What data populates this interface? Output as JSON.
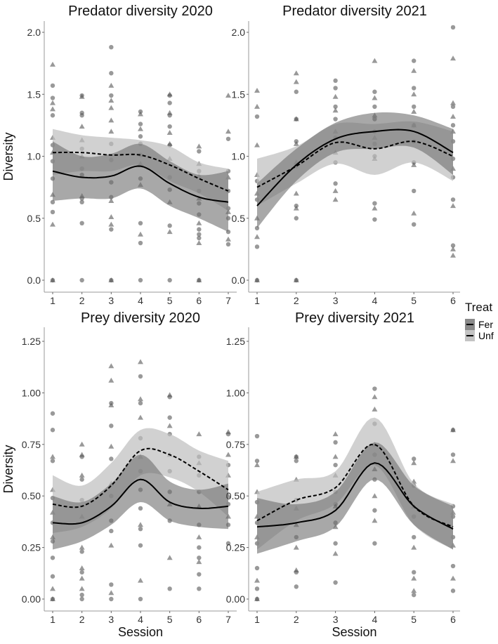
{
  "chart_data": [
    {
      "type": "scatter",
      "title": "Predator diversity 2020",
      "xlabel": "",
      "ylabel": "Diversity",
      "x": [
        1,
        2,
        3,
        4,
        5,
        6,
        7
      ],
      "xticks": [
        "1",
        "2",
        "3",
        "4",
        "5",
        "6",
        "7"
      ],
      "ylim": [
        0,
        2.0
      ],
      "yticks": [
        "0.0",
        "0.5",
        "1.0",
        "1.5",
        "2.0"
      ],
      "ytick_values": [
        0,
        0.5,
        1.0,
        1.5,
        2.0
      ],
      "smooth": {
        "Fer": {
          "fit": [
            0.88,
            0.83,
            0.84,
            0.92,
            0.78,
            0.67,
            0.63
          ],
          "lower": [
            0.64,
            0.66,
            0.66,
            0.74,
            0.6,
            0.5,
            0.39
          ],
          "upper": [
            1.12,
            1.0,
            1.02,
            1.1,
            0.96,
            0.85,
            0.88
          ]
        },
        "Unf": {
          "fit": [
            1.03,
            1.03,
            1.01,
            1.01,
            0.93,
            0.82,
            0.72
          ],
          "lower": [
            0.85,
            0.88,
            0.88,
            0.93,
            0.8,
            0.7,
            0.56
          ],
          "upper": [
            1.22,
            1.17,
            1.15,
            1.13,
            1.08,
            0.95,
            0.9
          ]
        }
      },
      "circles": [
        [
          1.57,
          1.47,
          1.33,
          1.09,
          0.96,
          0.82,
          0.63,
          0.55,
          0.0
        ],
        [
          1.49,
          1.35,
          1.33,
          1.06,
          0.9,
          0.85,
          0.66,
          0.63,
          0.46,
          0.0
        ],
        [
          1.88,
          1.67,
          1.49,
          1.1,
          0.97,
          0.79,
          0.67,
          0.41,
          0.0
        ],
        [
          1.36,
          1.26,
          1.16,
          1.1,
          1.01,
          0.82,
          0.46,
          0.3,
          0.0
        ],
        [
          1.49,
          1.43,
          1.33,
          1.24,
          1.09,
          0.83,
          0.73,
          0.44,
          0.0
        ],
        [
          1.04,
          0.88,
          0.72,
          0.62,
          0.53,
          0.41,
          0.37,
          0.34,
          0.0
        ],
        [
          1.14,
          0.88,
          0.72,
          0.58,
          0.5,
          0.39,
          0.29
        ]
      ],
      "triangles": [
        [
          1.74,
          1.43,
          1.38,
          1.15,
          1.03,
          0.69,
          0.45,
          0.0
        ],
        [
          1.48,
          1.24,
          1.13,
          1.0,
          0.68
        ],
        [
          1.57,
          1.45,
          1.39,
          1.29,
          1.2,
          0.64,
          0.51,
          0.45,
          0.0
        ],
        [
          1.34,
          1.22,
          0.94,
          0.77,
          0.37
        ],
        [
          1.5,
          1.35,
          1.19,
          1.1,
          0.98,
          0.63,
          0.39
        ],
        [
          1.08,
          0.94,
          0.84,
          0.66,
          0.46,
          0.3,
          0.0
        ],
        [
          1.49,
          1.2,
          0.83,
          0.55,
          0.33
        ]
      ]
    },
    {
      "type": "scatter",
      "title": "Predator diversity 2021",
      "xlabel": "",
      "ylabel": "",
      "x": [
        1,
        2,
        3,
        4,
        5,
        6
      ],
      "xticks": [
        "1",
        "2",
        "3",
        "4",
        "5",
        "6"
      ],
      "ylim": [
        0,
        2.0
      ],
      "yticks": [
        "0.0",
        "0.5",
        "1.0",
        "1.5",
        "2.0"
      ],
      "ytick_values": [
        0,
        0.5,
        1.0,
        1.5,
        2.0
      ],
      "smooth": {
        "Fer": {
          "fit": [
            0.6,
            0.93,
            1.14,
            1.2,
            1.2,
            1.03
          ],
          "lower": [
            0.42,
            0.8,
            1.03,
            1.06,
            1.07,
            0.85
          ],
          "upper": [
            0.78,
            1.06,
            1.27,
            1.35,
            1.33,
            1.22
          ]
        },
        "Unf": {
          "fit": [
            0.75,
            0.92,
            1.11,
            1.06,
            1.12,
            1.0
          ],
          "lower": [
            0.6,
            0.78,
            0.94,
            0.85,
            0.95,
            0.8
          ],
          "upper": [
            0.98,
            1.08,
            1.26,
            1.26,
            1.28,
            1.2
          ]
        }
      },
      "circles": [
        [
          1.32,
          0.8,
          0.65,
          0.42,
          0.27,
          0.0
        ],
        [
          1.52,
          1.3,
          1.12,
          0.92,
          0.6,
          0.5,
          0.0
        ],
        [
          1.61,
          1.55,
          1.4,
          1.3,
          1.15,
          0.95,
          0.78
        ],
        [
          1.52,
          1.4,
          1.3,
          1.2,
          1.1,
          1.0,
          0.62,
          0.49
        ],
        [
          1.77,
          1.55,
          1.4,
          1.25,
          1.12,
          0.95,
          0.72,
          0.45
        ],
        [
          2.04,
          1.4,
          1.25,
          1.12,
          0.98,
          0.83,
          0.65,
          0.28
        ]
      ],
      "triangles": [
        [
          1.53,
          1.4,
          1.09,
          0.85,
          0.7,
          0.5,
          0.35,
          0.0
        ],
        [
          1.67,
          1.6,
          1.3,
          1.1,
          0.95,
          0.7,
          0.58,
          0.0
        ],
        [
          1.48,
          1.37,
          1.2,
          1.03,
          0.72,
          0.65
        ],
        [
          1.77,
          1.47,
          1.33,
          1.15,
          0.98,
          0.58
        ],
        [
          1.69,
          1.5,
          1.36,
          1.25,
          0.93,
          0.54
        ],
        [
          1.79,
          1.43,
          1.32,
          1.2,
          0.9,
          0.6,
          0.25,
          0.2
        ]
      ]
    },
    {
      "type": "scatter",
      "title": "Prey diversity 2020",
      "xlabel": "Session",
      "ylabel": "Diversity",
      "x": [
        1,
        2,
        3,
        4,
        5,
        6,
        7
      ],
      "xticks": [
        "1",
        "2",
        "3",
        "4",
        "5",
        "6",
        "7"
      ],
      "ylim": [
        0,
        1.25
      ],
      "yticks": [
        "0.00",
        "0.25",
        "0.50",
        "0.75",
        "1.00",
        "1.25"
      ],
      "ytick_values": [
        0,
        0.25,
        0.5,
        0.75,
        1.0,
        1.25
      ],
      "smooth": {
        "Fer": {
          "fit": [
            0.37,
            0.37,
            0.45,
            0.58,
            0.47,
            0.44,
            0.45
          ],
          "lower": [
            0.24,
            0.28,
            0.36,
            0.47,
            0.38,
            0.35,
            0.34
          ],
          "upper": [
            0.5,
            0.47,
            0.56,
            0.7,
            0.57,
            0.53,
            0.56
          ]
        },
        "Unf": {
          "fit": [
            0.46,
            0.45,
            0.55,
            0.72,
            0.7,
            0.62,
            0.53
          ],
          "lower": [
            0.32,
            0.35,
            0.44,
            0.6,
            0.59,
            0.52,
            0.4
          ],
          "upper": [
            0.6,
            0.55,
            0.66,
            0.82,
            0.8,
            0.72,
            0.67
          ]
        }
      },
      "circles": [
        [
          0.9,
          0.82,
          0.67,
          0.49,
          0.37,
          0.28,
          0.2,
          0.11,
          0.0
        ],
        [
          0.69,
          0.58,
          0.48,
          0.23,
          0.13,
          0.02,
          0.0
        ],
        [
          0.95,
          0.84,
          0.68,
          0.5,
          0.38,
          0.33,
          0.07,
          0.0
        ],
        [
          1.08,
          0.95,
          0.78,
          0.62,
          0.53,
          0.44,
          0.34,
          0.26,
          0.0
        ],
        [
          0.98,
          0.88,
          0.8,
          0.62,
          0.52,
          0.38,
          0.05
        ],
        [
          0.69,
          0.6,
          0.52,
          0.36,
          0.25,
          0.2,
          0.12,
          0.05
        ],
        [
          0.8,
          0.65,
          0.46,
          0.36,
          0.27
        ]
      ],
      "triangles": [
        [
          0.69,
          0.53,
          0.42,
          0.3,
          0.05,
          0.0
        ],
        [
          0.75,
          0.7,
          0.6,
          0.4,
          0.25,
          0.15,
          0.1,
          0.05
        ],
        [
          1.13,
          1.06,
          0.94,
          0.74,
          0.56,
          0.26,
          0.03
        ],
        [
          1.15,
          0.97,
          0.88,
          0.69,
          0.36,
          0.09
        ],
        [
          0.99,
          0.84,
          0.7,
          0.46,
          0.2
        ],
        [
          0.8,
          0.66,
          0.45,
          0.3,
          0.18
        ],
        [
          0.81,
          0.7,
          0.6,
          0.5,
          0.4
        ]
      ]
    },
    {
      "type": "scatter",
      "title": "Prey diversity 2021",
      "xlabel": "Session",
      "ylabel": "",
      "x": [
        1,
        2,
        3,
        4,
        5,
        6
      ],
      "xticks": [
        "1",
        "2",
        "3",
        "4",
        "5",
        "6"
      ],
      "ylim": [
        0,
        1.25
      ],
      "yticks": [
        "0.00",
        "0.25",
        "0.50",
        "0.75",
        "1.00",
        "1.25"
      ],
      "ytick_values": [
        0,
        0.25,
        0.5,
        0.75,
        1.0,
        1.25
      ],
      "smooth": {
        "Fer": {
          "fit": [
            0.35,
            0.37,
            0.43,
            0.66,
            0.45,
            0.34
          ],
          "lower": [
            0.22,
            0.28,
            0.35,
            0.58,
            0.36,
            0.24
          ],
          "upper": [
            0.49,
            0.46,
            0.52,
            0.76,
            0.55,
            0.45
          ]
        },
        "Unf": {
          "fit": [
            0.38,
            0.48,
            0.54,
            0.75,
            0.45,
            0.35
          ],
          "lower": [
            0.24,
            0.38,
            0.46,
            0.65,
            0.36,
            0.24
          ],
          "upper": [
            0.52,
            0.58,
            0.62,
            0.88,
            0.56,
            0.46
          ]
        }
      },
      "circles": [
        [
          0.79,
          0.67,
          0.47,
          0.37,
          0.27,
          0.15,
          0.05,
          0.0
        ],
        [
          0.69,
          0.67,
          0.48,
          0.3,
          0.13,
          0.06
        ],
        [
          0.76,
          0.65,
          0.52,
          0.46,
          0.37,
          0.27,
          0.08
        ],
        [
          1.02,
          0.85,
          0.7,
          0.58,
          0.43,
          0.27
        ],
        [
          0.68,
          0.55,
          0.4,
          0.3,
          0.13,
          0.02
        ],
        [
          0.82,
          0.7,
          0.45,
          0.4,
          0.3,
          0.16,
          0.04
        ]
      ],
      "triangles": [
        [
          0.65,
          0.52,
          0.4,
          0.3,
          0.09,
          0.0
        ],
        [
          0.69,
          0.58,
          0.44,
          0.36,
          0.25,
          0.14
        ],
        [
          0.8,
          0.69,
          0.6,
          0.45,
          0.35,
          0.22
        ],
        [
          0.98,
          0.92,
          0.75,
          0.63,
          0.5,
          0.38
        ],
        [
          0.66,
          0.57,
          0.45,
          0.25,
          0.1,
          0.04
        ],
        [
          0.82,
          0.67,
          0.42,
          0.26,
          0.1
        ]
      ]
    }
  ],
  "legend": {
    "title": "Treat",
    "placement": "right",
    "entries": [
      {
        "label": "Fer",
        "linetype": "solid",
        "ribbon_color": "#6e6e6e"
      },
      {
        "label": "Unf",
        "linetype": "dashed",
        "ribbon_color": "#bdbdbd"
      }
    ]
  },
  "colors": {
    "point": "#555555",
    "line": "#000000",
    "axis": "#999999"
  }
}
